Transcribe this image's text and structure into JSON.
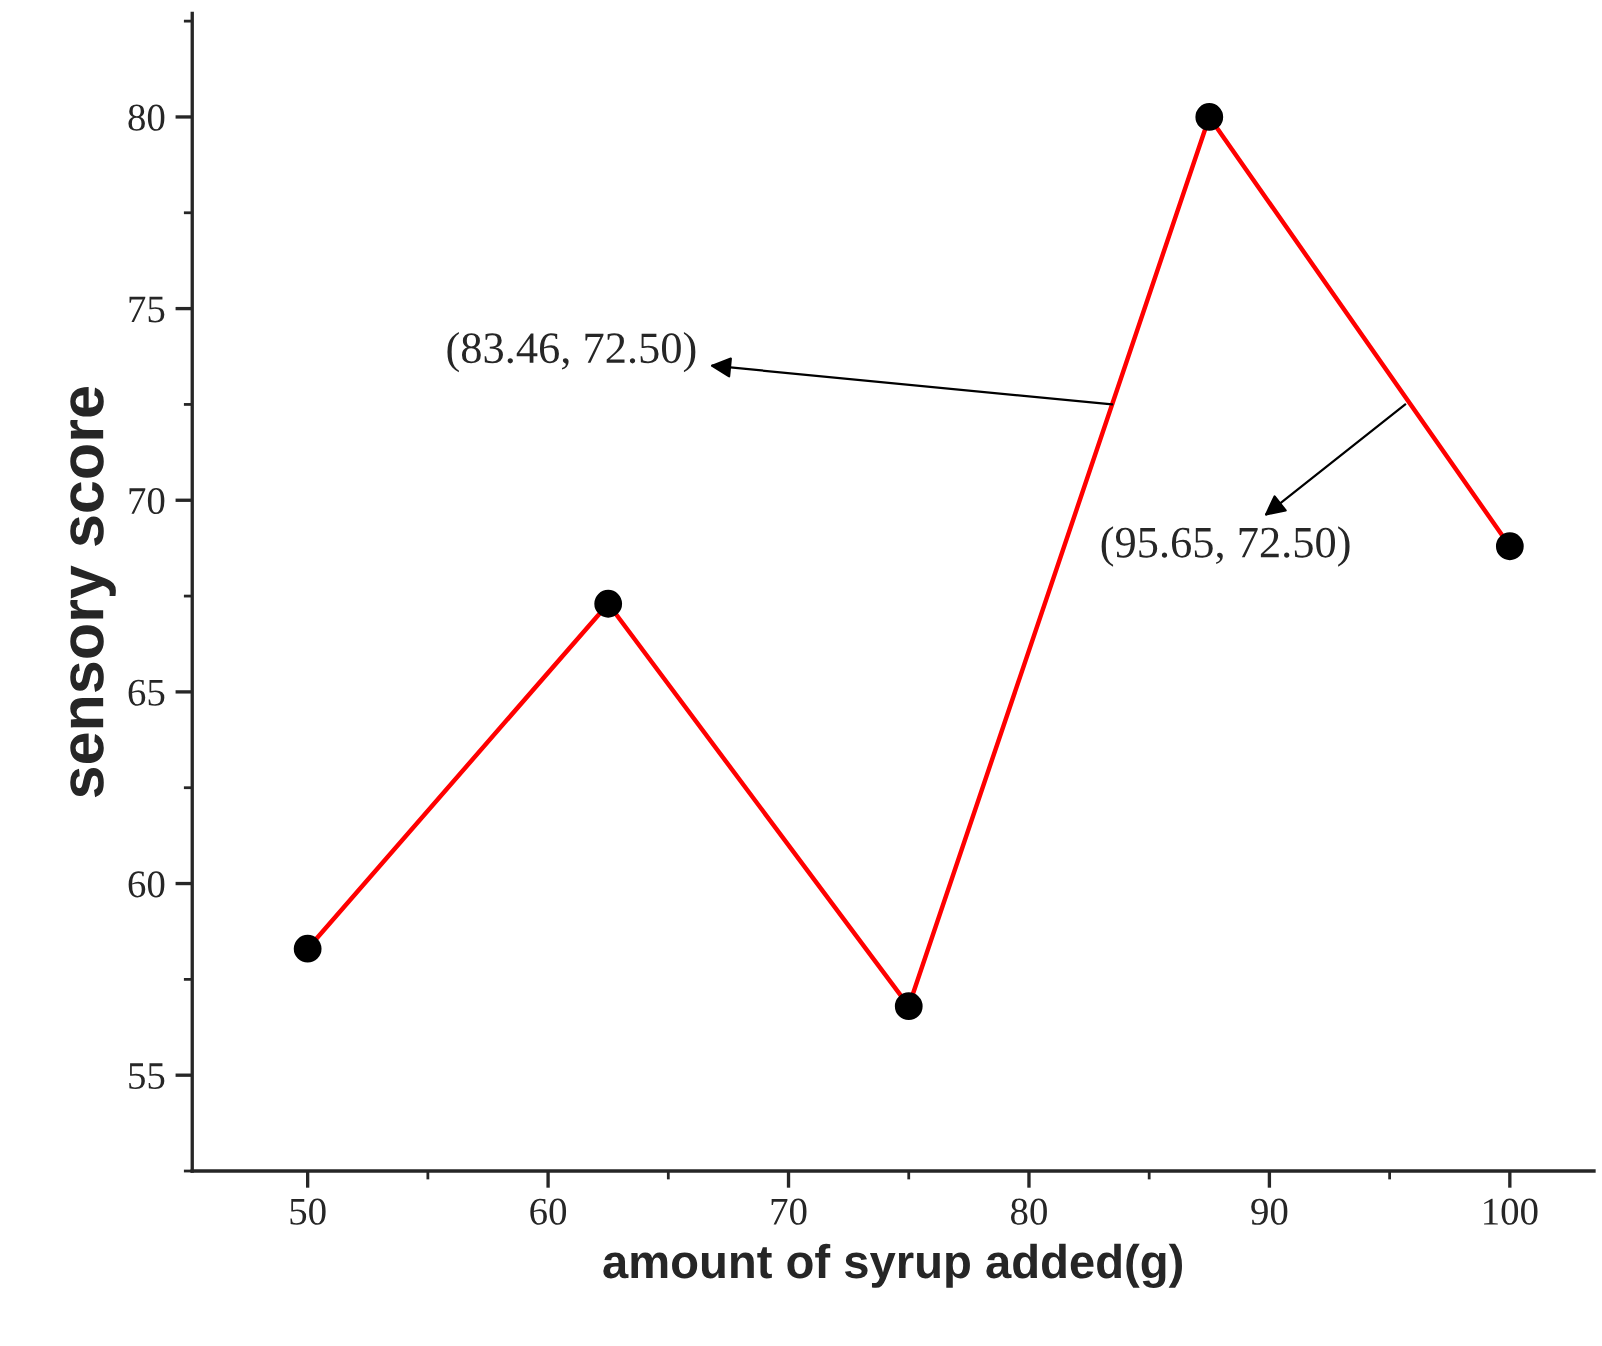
{
  "chart_data": {
    "type": "line",
    "xlabel": "amount of syrup added(g)",
    "ylabel": "sensory score",
    "x": [
      50,
      62.5,
      75,
      87.5,
      100
    ],
    "series": [
      {
        "color": "#ff0000",
        "values": [
          58.3,
          67.3,
          56.8,
          80,
          68.8
        ]
      }
    ],
    "marker": "circle",
    "line_style": "solid",
    "xlim": [
      45.2,
      103.5
    ],
    "ylim": [
      52.5,
      82.7
    ],
    "xticks": [
      50,
      60,
      70,
      80,
      90,
      100
    ],
    "yticks": [
      55,
      60,
      65,
      70,
      75,
      80
    ],
    "annotations": [
      {
        "text": "(83.46, 72.50)",
        "x": 83.46,
        "y": 72.5
      },
      {
        "text": "(95.65, 72.50)",
        "x": 95.65,
        "y": 72.5
      }
    ],
    "grid": false,
    "legend": false
  }
}
